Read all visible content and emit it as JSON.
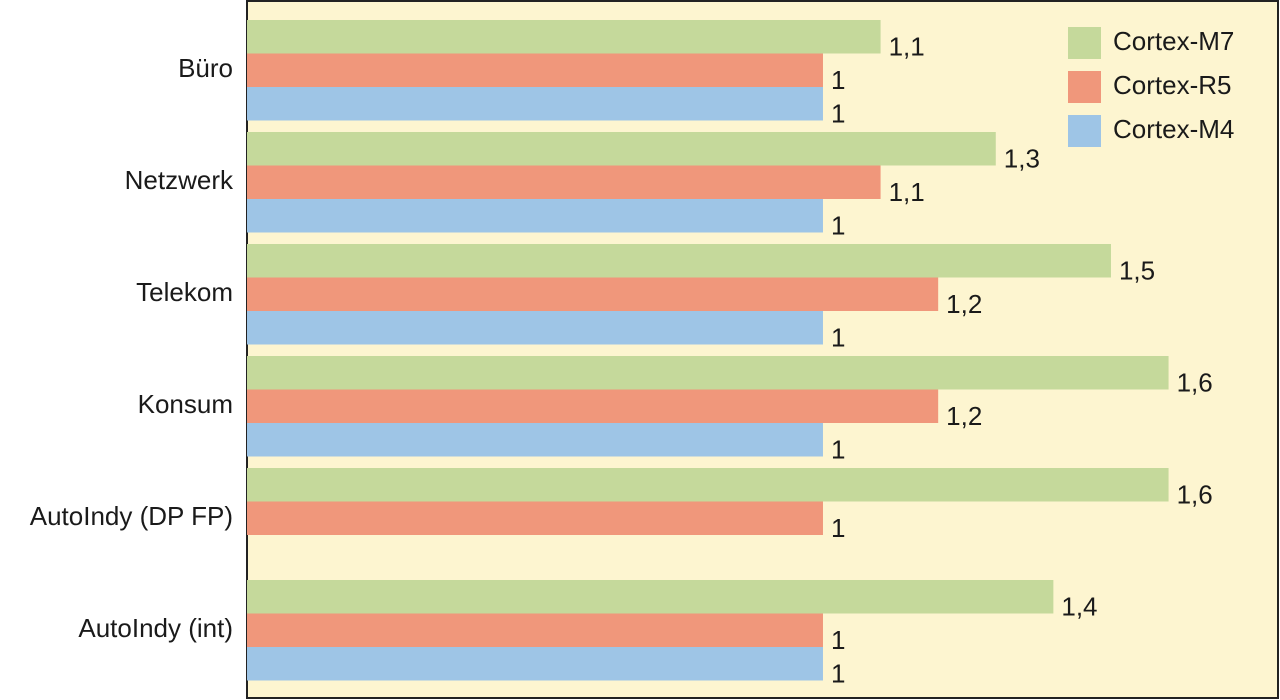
{
  "chart_data": {
    "type": "barh",
    "categories": [
      "Büro",
      "Netzwerk",
      "Telekom",
      "Konsum",
      "AutoIndy (DP FP)",
      "AutoIndy (int)"
    ],
    "series": [
      {
        "name": "Cortex-M7",
        "color": "#c5d99b",
        "values": [
          1.1,
          1.3,
          1.5,
          1.6,
          1.6,
          1.4
        ],
        "value_labels": [
          "1,1",
          "1,3",
          "1,5",
          "1,6",
          "1,6",
          "1,4"
        ]
      },
      {
        "name": "Cortex-R5",
        "color": "#f0977b",
        "values": [
          1,
          1.1,
          1.2,
          1.2,
          1,
          1
        ],
        "value_labels": [
          "1",
          "1,1",
          "1,2",
          "1,2",
          "1",
          "1"
        ]
      },
      {
        "name": "Cortex-M4",
        "color": "#9ec5e6",
        "values": [
          1,
          1,
          1,
          1,
          null,
          1
        ],
        "value_labels": [
          "1",
          "1",
          "1",
          "1",
          null,
          "1"
        ]
      }
    ],
    "xlim": [
      0,
      1.79
    ],
    "legend": "upper right",
    "background": "#fdf5d0"
  }
}
